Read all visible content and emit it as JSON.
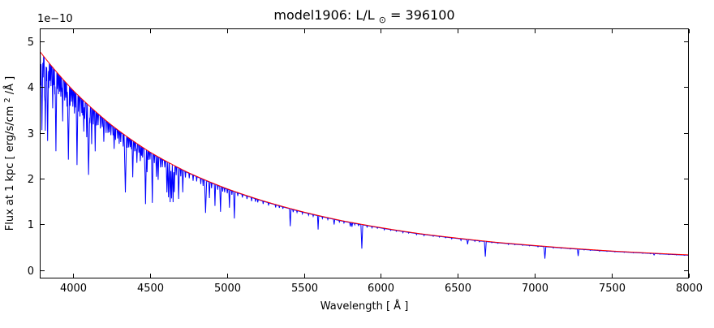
{
  "chart_data": {
    "type": "line",
    "title": {
      "prefix": "model1906: L/L",
      "subscript": "⊙",
      "suffix": " = 396100"
    },
    "xlabel": "Wavelength [ Å ]",
    "ylabel": {
      "prefix": "Flux at 1 kpc [ erg/s/cm",
      "superscript": "2",
      "suffix": " /Å ]"
    },
    "y_offset_text": "1e−10",
    "xlim": [
      3784,
      8000
    ],
    "ylim": [
      -0.18,
      5.28
    ],
    "xticks": [
      4000,
      4500,
      5000,
      5500,
      6000,
      6500,
      7000,
      7500,
      8000
    ],
    "yticks": [
      0,
      1,
      2,
      3,
      4,
      5
    ],
    "y_unit_scale": "1e-10",
    "grid": false,
    "legend": null,
    "series": [
      {
        "id": "model-spectrum",
        "color": "#0000ff"
      },
      {
        "id": "continuum-fit",
        "color": "#ff0000"
      }
    ],
    "continuum_points": [
      [
        3784,
        4.78
      ],
      [
        4000,
        3.93
      ],
      [
        4250,
        3.17
      ],
      [
        4500,
        2.58
      ],
      [
        4750,
        2.13
      ],
      [
        5000,
        1.78
      ],
      [
        5250,
        1.5
      ],
      [
        5500,
        1.27
      ],
      [
        5750,
        1.08
      ],
      [
        6000,
        0.93
      ],
      [
        6250,
        0.8
      ],
      [
        6500,
        0.7
      ],
      [
        6750,
        0.61
      ],
      [
        7000,
        0.54
      ],
      [
        7250,
        0.475
      ],
      [
        7500,
        0.42
      ],
      [
        7750,
        0.375
      ],
      [
        8000,
        0.335
      ]
    ],
    "absorption_lines": [
      [
        3790,
        0.15,
        3
      ],
      [
        3798,
        0.35,
        6
      ],
      [
        3806,
        0.1,
        3
      ],
      [
        3815,
        0.18,
        3
      ],
      [
        3820,
        0.34,
        5
      ],
      [
        3827,
        0.1,
        3
      ],
      [
        3835,
        0.38,
        6
      ],
      [
        3843,
        0.12,
        3
      ],
      [
        3850,
        0.08,
        3
      ],
      [
        3857,
        0.1,
        3
      ],
      [
        3868,
        0.2,
        4
      ],
      [
        3875,
        0.08,
        3
      ],
      [
        3882,
        0.12,
        3
      ],
      [
        3889,
        0.4,
        6
      ],
      [
        3898,
        0.08,
        3
      ],
      [
        3906,
        0.1,
        3
      ],
      [
        3914,
        0.08,
        3
      ],
      [
        3921,
        0.1,
        3
      ],
      [
        3928,
        0.07,
        3
      ],
      [
        3933,
        0.22,
        4
      ],
      [
        3946,
        0.1,
        3
      ],
      [
        3953,
        0.08,
        3
      ],
      [
        3961,
        0.12,
        3
      ],
      [
        3970,
        0.4,
        7
      ],
      [
        3981,
        0.1,
        3
      ],
      [
        3990,
        0.07,
        3
      ],
      [
        3999,
        0.09,
        3
      ],
      [
        4009,
        0.12,
        3
      ],
      [
        4017,
        0.08,
        3
      ],
      [
        4026,
        0.4,
        6
      ],
      [
        4035,
        0.09,
        3
      ],
      [
        4045,
        0.11,
        3
      ],
      [
        4057,
        0.08,
        3
      ],
      [
        4063,
        0.09,
        3
      ],
      [
        4070,
        0.18,
        4
      ],
      [
        4076,
        0.1,
        3
      ],
      [
        4089,
        0.2,
        4
      ],
      [
        4101,
        0.42,
        8
      ],
      [
        4110,
        0.1,
        3
      ],
      [
        4121,
        0.22,
        4
      ],
      [
        4132,
        0.09,
        3
      ],
      [
        4144,
        0.25,
        4
      ],
      [
        4153,
        0.08,
        3
      ],
      [
        4163,
        0.07,
        3
      ],
      [
        4178,
        0.08,
        3
      ],
      [
        4190,
        0.06,
        3
      ],
      [
        4200,
        0.15,
        4
      ],
      [
        4215,
        0.08,
        3
      ],
      [
        4227,
        0.07,
        3
      ],
      [
        4235,
        0.06,
        3
      ],
      [
        4246,
        0.07,
        3
      ],
      [
        4260,
        0.06,
        3
      ],
      [
        4267,
        0.15,
        4
      ],
      [
        4276,
        0.08,
        3
      ],
      [
        4290,
        0.06,
        3
      ],
      [
        4300,
        0.09,
        3
      ],
      [
        4310,
        0.07,
        3
      ],
      [
        4326,
        0.09,
        3
      ],
      [
        4340,
        0.42,
        8
      ],
      [
        4352,
        0.08,
        3
      ],
      [
        4362,
        0.07,
        3
      ],
      [
        4372,
        0.06,
        3
      ],
      [
        4380,
        0.07,
        3
      ],
      [
        4388,
        0.28,
        5
      ],
      [
        4400,
        0.07,
        3
      ],
      [
        4410,
        0.06,
        3
      ],
      [
        4415,
        0.15,
        4
      ],
      [
        4428,
        0.06,
        3
      ],
      [
        4437,
        0.12,
        4
      ],
      [
        4445,
        0.07,
        3
      ],
      [
        4452,
        0.08,
        3
      ],
      [
        4465,
        0.1,
        3
      ],
      [
        4471,
        0.45,
        6
      ],
      [
        4481,
        0.18,
        4
      ],
      [
        4490,
        0.07,
        3
      ],
      [
        4500,
        0.06,
        3
      ],
      [
        4515,
        0.42,
        5
      ],
      [
        4528,
        0.07,
        3
      ],
      [
        4542,
        0.18,
        4
      ],
      [
        4553,
        0.2,
        4
      ],
      [
        4568,
        0.08,
        3
      ],
      [
        4580,
        0.07,
        3
      ],
      [
        4596,
        0.06,
        3
      ],
      [
        4610,
        0.28,
        5
      ],
      [
        4620,
        0.32,
        5
      ],
      [
        4631,
        0.36,
        5
      ],
      [
        4640,
        0.32,
        5
      ],
      [
        4650,
        0.35,
        5
      ],
      [
        4658,
        0.25,
        4
      ],
      [
        4670,
        0.08,
        3
      ],
      [
        4686,
        0.3,
        5
      ],
      [
        4700,
        0.07,
        3
      ],
      [
        4713,
        0.22,
        4
      ],
      [
        4730,
        0.06,
        3
      ],
      [
        4755,
        0.05,
        3
      ],
      [
        4780,
        0.06,
        3
      ],
      [
        4803,
        0.05,
        3
      ],
      [
        4830,
        0.06,
        3
      ],
      [
        4845,
        0.07,
        3
      ],
      [
        4861,
        0.36,
        7
      ],
      [
        4886,
        0.18,
        4
      ],
      [
        4900,
        0.06,
        3
      ],
      [
        4922,
        0.25,
        4
      ],
      [
        4940,
        0.05,
        3
      ],
      [
        4958,
        0.3,
        5
      ],
      [
        4972,
        0.05,
        3
      ],
      [
        4985,
        0.05,
        3
      ],
      [
        5002,
        0.05,
        3
      ],
      [
        5016,
        0.22,
        4
      ],
      [
        5032,
        0.05,
        3
      ],
      [
        5048,
        0.34,
        5
      ],
      [
        5070,
        0.04,
        3
      ],
      [
        5100,
        0.04,
        3
      ],
      [
        5130,
        0.04,
        3
      ],
      [
        5160,
        0.05,
        3
      ],
      [
        5185,
        0.04,
        3
      ],
      [
        5200,
        0.04,
        3
      ],
      [
        5235,
        0.04,
        3
      ],
      [
        5270,
        0.04,
        3
      ],
      [
        5316,
        0.04,
        3
      ],
      [
        5340,
        0.03,
        3
      ],
      [
        5363,
        0.03,
        3
      ],
      [
        5411,
        0.28,
        5
      ],
      [
        5430,
        0.04,
        3
      ],
      [
        5455,
        0.03,
        3
      ],
      [
        5490,
        0.03,
        3
      ],
      [
        5530,
        0.03,
        3
      ],
      [
        5560,
        0.03,
        3
      ],
      [
        5592,
        0.25,
        4
      ],
      [
        5620,
        0.03,
        3
      ],
      [
        5655,
        0.03,
        3
      ],
      [
        5696,
        0.1,
        4
      ],
      [
        5730,
        0.03,
        3
      ],
      [
        5760,
        0.03,
        3
      ],
      [
        5801,
        0.08,
        4
      ],
      [
        5812,
        0.08,
        4
      ],
      [
        5830,
        0.03,
        3
      ],
      [
        5855,
        0.04,
        3
      ],
      [
        5876,
        0.52,
        6
      ],
      [
        5910,
        0.03,
        3
      ],
      [
        5942,
        0.03,
        3
      ],
      [
        5977,
        0.02,
        3
      ],
      [
        6022,
        0.03,
        3
      ],
      [
        6063,
        0.02,
        3
      ],
      [
        6100,
        0.02,
        3
      ],
      [
        6143,
        0.03,
        3
      ],
      [
        6180,
        0.02,
        3
      ],
      [
        6231,
        0.03,
        3
      ],
      [
        6280,
        0.03,
        3
      ],
      [
        6340,
        0.02,
        3
      ],
      [
        6380,
        0.02,
        3
      ],
      [
        6420,
        0.02,
        3
      ],
      [
        6460,
        0.03,
        3
      ],
      [
        6520,
        0.05,
        4
      ],
      [
        6563,
        0.15,
        5
      ],
      [
        6610,
        0.03,
        3
      ],
      [
        6640,
        0.03,
        3
      ],
      [
        6678,
        0.52,
        6
      ],
      [
        6720,
        0.02,
        3
      ],
      [
        6760,
        0.02,
        3
      ],
      [
        6828,
        0.03,
        3
      ],
      [
        6870,
        0.02,
        3
      ],
      [
        6920,
        0.02,
        3
      ],
      [
        6965,
        0.02,
        3
      ],
      [
        7020,
        0.03,
        3
      ],
      [
        7065,
        0.5,
        6
      ],
      [
        7120,
        0.03,
        3
      ],
      [
        7170,
        0.02,
        3
      ],
      [
        7230,
        0.02,
        3
      ],
      [
        7281,
        0.32,
        5
      ],
      [
        7320,
        0.02,
        3
      ],
      [
        7360,
        0.02,
        3
      ],
      [
        7420,
        0.03,
        3
      ],
      [
        7468,
        0.02,
        3
      ],
      [
        7520,
        0.02,
        3
      ],
      [
        7580,
        0.02,
        3
      ],
      [
        7640,
        0.02,
        3
      ],
      [
        7700,
        0.02,
        3
      ],
      [
        7750,
        0.02,
        3
      ],
      [
        7774,
        0.08,
        5
      ],
      [
        7812,
        0.02,
        3
      ],
      [
        7870,
        0.02,
        3
      ],
      [
        7920,
        0.02,
        3
      ],
      [
        7970,
        0.02,
        3
      ]
    ],
    "sample_step_angstrom": 1.5,
    "axes_color": "#000000",
    "background_color": "#ffffff"
  }
}
